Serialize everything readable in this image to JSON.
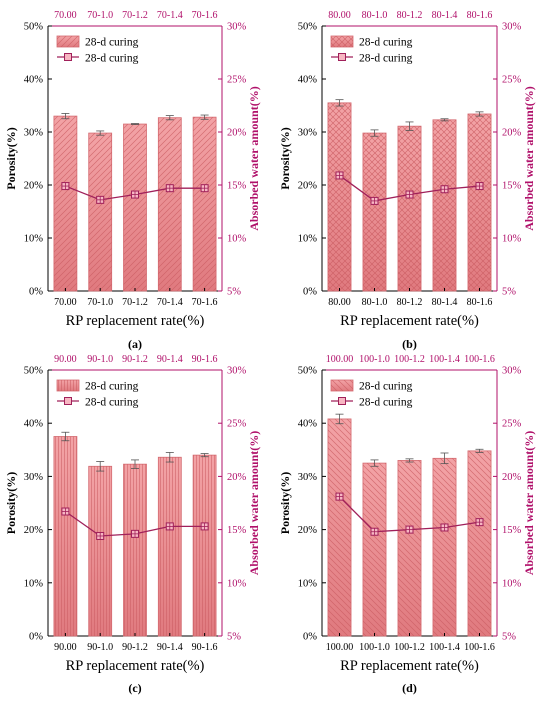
{
  "colors": {
    "bar_fill": "#f3a3a6",
    "bar_dark": "#e07a7f",
    "hatch": "#c95a60",
    "bar_edge": "#d46a70",
    "line": "#a0205a",
    "marker_fill": "#f7b6c2",
    "right_axis": "#b0106a",
    "top_labels": "#b0106a",
    "text": "#000000"
  },
  "chart_data": [
    {
      "type": "bar+line",
      "panel_label": "(a)",
      "categories": [
        "70.00",
        "70-1.0",
        "70-1.2",
        "70-1.4",
        "70-1.6"
      ],
      "xlabel": "RP replacement rate(%)",
      "ylabel": "Porosity(%)",
      "y2label": "Absorbed water amount(%)",
      "ylim": [
        0,
        50
      ],
      "yticks": [
        "0%",
        "10%",
        "20%",
        "30%",
        "40%",
        "50%"
      ],
      "y2lim": [
        5,
        30
      ],
      "y2ticks": [
        "5%",
        "10%",
        "15%",
        "20%",
        "25%",
        "30%"
      ],
      "legend": [
        "28-d curing",
        "28-d curing"
      ],
      "hatch": "diag-left",
      "series": [
        {
          "values": [
            33.0,
            29.8,
            31.5,
            32.7,
            32.8
          ],
          "errors": [
            0.5,
            0.4,
            0.1,
            0.4,
            0.4
          ]
        },
        {
          "values": [
            14.9,
            13.6,
            14.1,
            14.7,
            14.7
          ]
        }
      ]
    },
    {
      "type": "bar+line",
      "panel_label": "(b)",
      "categories": [
        "80.00",
        "80-1.0",
        "80-1.2",
        "80-1.4",
        "80-1.6"
      ],
      "xlabel": "RP replacement rate(%)",
      "ylabel": "Porosity(%)",
      "y2label": "Absorbed water amount(%)",
      "ylim": [
        0,
        50
      ],
      "yticks": [
        "0%",
        "10%",
        "20%",
        "30%",
        "40%",
        "50%"
      ],
      "y2lim": [
        5,
        30
      ],
      "y2ticks": [
        "5%",
        "10%",
        "15%",
        "20%",
        "25%",
        "30%"
      ],
      "legend": [
        "28-d curing",
        "28-d curing"
      ],
      "hatch": "cross",
      "series": [
        {
          "values": [
            35.5,
            29.8,
            31.1,
            32.3,
            33.4
          ],
          "errors": [
            0.6,
            0.6,
            0.8,
            0.2,
            0.4
          ]
        },
        {
          "values": [
            15.9,
            13.5,
            14.1,
            14.6,
            14.9
          ]
        }
      ]
    },
    {
      "type": "bar+line",
      "panel_label": "(c)",
      "categories": [
        "90.00",
        "90-1.0",
        "90-1.2",
        "90-1.4",
        "90-1.6"
      ],
      "xlabel": "RP replacement rate(%)",
      "ylabel": "Porosity(%)",
      "y2label": "Absorbed water amount(%)",
      "ylim": [
        0,
        50
      ],
      "yticks": [
        "0%",
        "10%",
        "20%",
        "30%",
        "40%",
        "50%"
      ],
      "y2lim": [
        5,
        30
      ],
      "y2ticks": [
        "5%",
        "10%",
        "15%",
        "20%",
        "25%",
        "30%"
      ],
      "legend": [
        "28-d curing",
        "28-d curing"
      ],
      "hatch": "vertical",
      "series": [
        {
          "values": [
            37.5,
            31.9,
            32.3,
            33.6,
            34.0
          ],
          "errors": [
            0.8,
            0.9,
            0.8,
            0.9,
            0.3
          ]
        },
        {
          "values": [
            16.7,
            14.4,
            14.6,
            15.3,
            15.3
          ]
        }
      ]
    },
    {
      "type": "bar+line",
      "panel_label": "(d)",
      "categories": [
        "100.00",
        "100-1.0",
        "100-1.2",
        "100-1.4",
        "100-1.6"
      ],
      "xlabel": "RP replacement rate(%)",
      "ylabel": "Porosity(%)",
      "y2label": "Absorbed water amount(%)",
      "ylim": [
        0,
        50
      ],
      "yticks": [
        "0%",
        "10%",
        "20%",
        "30%",
        "40%",
        "50%"
      ],
      "y2lim": [
        5,
        30
      ],
      "y2ticks": [
        "5%",
        "10%",
        "15%",
        "20%",
        "25%",
        "30%"
      ],
      "legend": [
        "28-d curing",
        "28-d curing"
      ],
      "hatch": "diag-right",
      "series": [
        {
          "values": [
            40.8,
            32.5,
            33.0,
            33.4,
            34.8
          ],
          "errors": [
            0.9,
            0.6,
            0.3,
            1.0,
            0.3
          ]
        },
        {
          "values": [
            18.1,
            14.8,
            15.0,
            15.2,
            15.7
          ]
        }
      ]
    }
  ]
}
